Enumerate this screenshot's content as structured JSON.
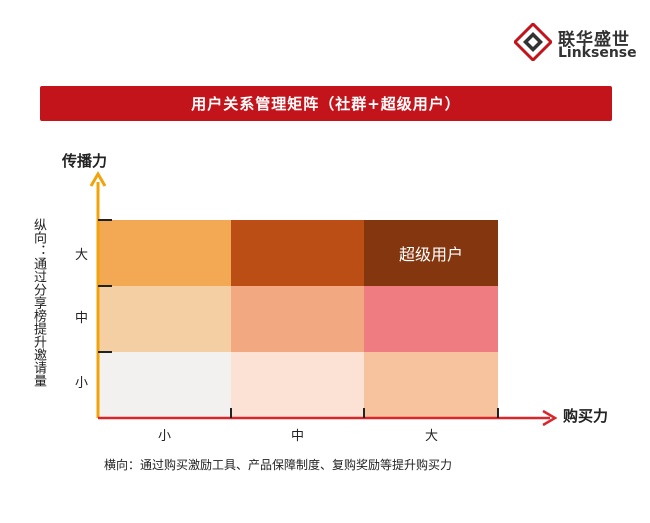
{
  "brand": {
    "name_cn": "联华盛世",
    "name_en": "Linksense"
  },
  "banner": {
    "title": "用户关系管理矩阵（社群+超级用户）"
  },
  "axes": {
    "y_title": "传播力",
    "x_title": "购买力",
    "y_description": "纵向：通过分享榜提升邀请量",
    "x_description": "横向：通过购买激励工具、产品保障制度、复购奖励等提升购买力",
    "y_levels": [
      "大",
      "中",
      "小"
    ],
    "x_levels": [
      "小",
      "中",
      "大"
    ]
  },
  "matrix": {
    "rows": [
      {
        "level": "大",
        "cells": [
          {
            "color": "#f3a953",
            "label": ""
          },
          {
            "color": "#bb4e14",
            "label": ""
          },
          {
            "color": "#84360f",
            "label": "超级用户"
          }
        ]
      },
      {
        "level": "中",
        "cells": [
          {
            "color": "#f5cfa4",
            "label": ""
          },
          {
            "color": "#f2a880",
            "label": ""
          },
          {
            "color": "#ee7c80",
            "label": ""
          }
        ]
      },
      {
        "level": "小",
        "cells": [
          {
            "color": "#f2f1f0",
            "label": ""
          },
          {
            "color": "#fbe2d5",
            "label": ""
          },
          {
            "color": "#f7c39f",
            "label": ""
          }
        ]
      }
    ]
  },
  "colors": {
    "axis_y": "#f0a30a",
    "axis_x": "#d9262b",
    "banner": "#c4141b"
  }
}
